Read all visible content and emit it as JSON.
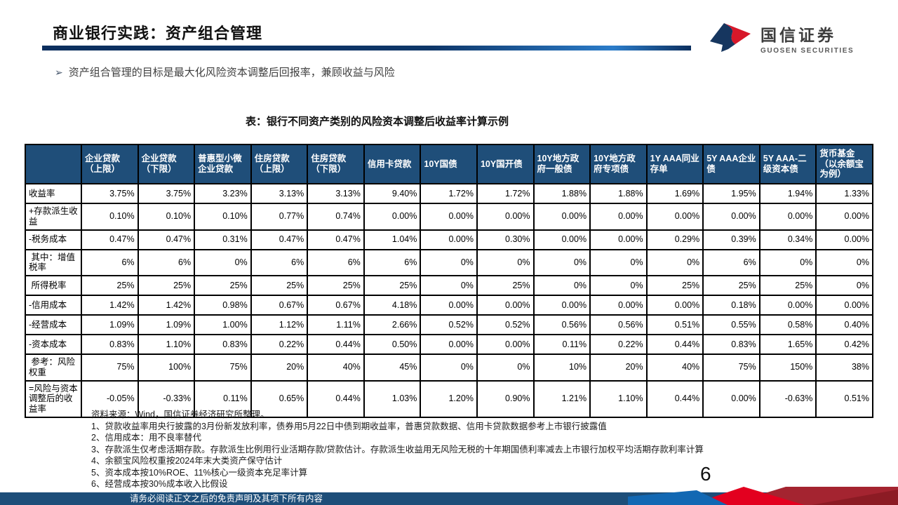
{
  "header": {
    "title": "商业银行实践：资产组合管理",
    "logo": {
      "name_cn": "国信证券",
      "name_en": "GUOSEN SECURITIES"
    }
  },
  "bullet": {
    "marker": "➢",
    "text": "资产组合管理的目标是最大化风险资本调整后回报率，兼顾收益与风险"
  },
  "table": {
    "title": "表：银行不同资产类别的风险资本调整后收益率计算示例",
    "columns": [
      "企业贷款（上限）",
      "企业贷款（下限）",
      "普惠型小微企业贷款",
      "住房贷款（上限）",
      "住房贷款（下限）",
      "信用卡贷款",
      "10Y国债",
      "10Y国开债",
      "10Y地方政府一般债",
      "10Y地方政府专项债",
      "1Y AAA同业存单",
      "5Y AAA企业债",
      "5Y AAA-二级资本债",
      "货币基金（以余额宝为例）"
    ],
    "rows": [
      {
        "label": "收益率",
        "values": [
          "3.75%",
          "3.75%",
          "3.23%",
          "3.13%",
          "3.13%",
          "9.40%",
          "1.72%",
          "1.72%",
          "1.88%",
          "1.88%",
          "1.69%",
          "1.95%",
          "1.94%",
          "1.33%"
        ]
      },
      {
        "label": "+存款派生收益",
        "values": [
          "0.10%",
          "0.10%",
          "0.10%",
          "0.77%",
          "0.74%",
          "0.00%",
          "0.00%",
          "0.00%",
          "0.00%",
          "0.00%",
          "0.00%",
          "0.00%",
          "0.00%",
          "0.00%"
        ]
      },
      {
        "label": "-税务成本",
        "values": [
          "0.47%",
          "0.47%",
          "0.31%",
          "0.47%",
          "0.47%",
          "1.04%",
          "0.00%",
          "0.30%",
          "0.00%",
          "0.00%",
          "0.29%",
          "0.39%",
          "0.34%",
          "0.00%"
        ]
      },
      {
        "label": " 其中：增值税率",
        "values": [
          "6%",
          "6%",
          "0%",
          "6%",
          "6%",
          "6%",
          "0%",
          "0%",
          "0%",
          "0%",
          "0%",
          "6%",
          "0%",
          "0%"
        ]
      },
      {
        "label": " 所得税率",
        "values": [
          "25%",
          "25%",
          "25%",
          "25%",
          "25%",
          "25%",
          "0%",
          "25%",
          "0%",
          "0%",
          "25%",
          "25%",
          "25%",
          "0%"
        ]
      },
      {
        "label": "-信用成本",
        "values": [
          "1.42%",
          "1.42%",
          "0.98%",
          "0.67%",
          "0.67%",
          "4.18%",
          "0.00%",
          "0.00%",
          "0.00%",
          "0.00%",
          "0.00%",
          "0.18%",
          "0.00%",
          "0.00%"
        ]
      },
      {
        "label": "-经营成本",
        "values": [
          "1.09%",
          "1.09%",
          "1.00%",
          "1.12%",
          "1.11%",
          "2.66%",
          "0.52%",
          "0.52%",
          "0.56%",
          "0.56%",
          "0.51%",
          "0.55%",
          "0.58%",
          "0.40%"
        ]
      },
      {
        "label": "-资本成本",
        "values": [
          "0.83%",
          "1.10%",
          "0.83%",
          "0.22%",
          "0.44%",
          "0.50%",
          "0.00%",
          "0.00%",
          "0.11%",
          "0.22%",
          "0.44%",
          "0.83%",
          "1.65%",
          "0.42%"
        ]
      },
      {
        "label": " 参考：风险权重",
        "values": [
          "75%",
          "100%",
          "75%",
          "20%",
          "40%",
          "45%",
          "0%",
          "0%",
          "10%",
          "20%",
          "40%",
          "75%",
          "150%",
          "38%"
        ]
      },
      {
        "label": "=风险与资本调整后的收益率",
        "values": [
          "-0.05%",
          "-0.33%",
          "0.11%",
          "0.65%",
          "0.44%",
          "1.03%",
          "1.20%",
          "0.90%",
          "1.21%",
          "1.10%",
          "0.44%",
          "0.00%",
          "-0.63%",
          "0.51%"
        ]
      }
    ]
  },
  "footnotes": [
    "资料来源：Wind，国信证券经济研究所整理。",
    "1、贷款收益率用央行披露的3月份新发放利率，债券用5月22日中债到期收益率，普惠贷款数据、信用卡贷款数据参考上市银行披露值",
    "2、信用成本：用不良率替代",
    "3、存款派生仅考虑活期存款。存款派生比例用行业活期存款/贷款估计。存款派生收益用无风险无税的十年期国债利率减去上市银行加权平均活期存款利率计算",
    "4、余额宝风险权重按2024年末大类资产保守估计",
    "5、资本成本按10%ROE、11%核心一级资本充足率计算",
    "6、经营成本按30%成本收入比假设"
  ],
  "page_number": "6",
  "footer": {
    "disclaimer": "请务必阅读正文之后的免责声明及其项下所有内容"
  },
  "colors": {
    "table_header_bg": "#1f4e79",
    "footer_bar": "#1d4e79",
    "brand_red": "#e3001f",
    "brand_dark_red": "#a42430",
    "brand_blue": "#1268b3",
    "title_rule_navy": "#0c2f5e"
  }
}
